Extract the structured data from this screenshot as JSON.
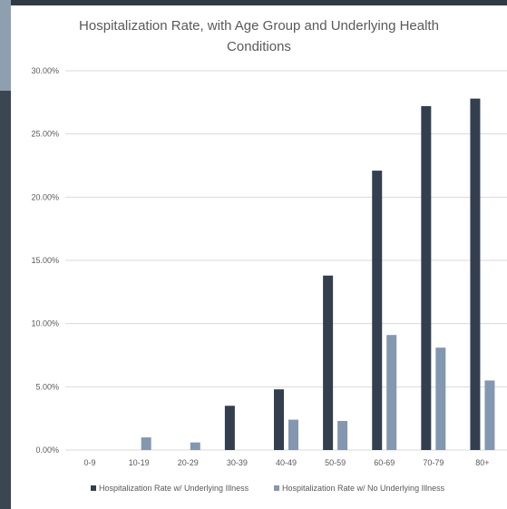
{
  "colors": {
    "series_underlying": "#333f4f",
    "series_no_underlying": "#8497b0",
    "gridline": "#d9d9d9",
    "text": "#595959"
  },
  "chart_data": {
    "type": "bar",
    "title_lines": [
      "Hospitalization Rate, with Age Group and Underlying Health",
      "Conditions"
    ],
    "categories": [
      "0-9",
      "10-19",
      "20-29",
      "30-39",
      "40-49",
      "50-59",
      "60-69",
      "70-79",
      "80+"
    ],
    "series": [
      {
        "name": "Hospitalization Rate w/ Underlying Illness",
        "values": [
          0,
          0,
          0,
          3.5,
          4.8,
          13.8,
          22.1,
          27.2,
          27.8
        ]
      },
      {
        "name": "Hospitalization Rate w/ No Underlying Illness",
        "values": [
          0,
          1.0,
          0.6,
          0,
          2.4,
          2.3,
          9.1,
          8.1,
          5.5
        ]
      }
    ],
    "ylim": [
      0,
      30
    ],
    "yticks": [
      0,
      5,
      10,
      15,
      20,
      25,
      30
    ],
    "ytick_labels": [
      "0.00%",
      "5.00%",
      "10.00%",
      "15.00%",
      "20.00%",
      "25.00%",
      "30.00%"
    ],
    "grid": true,
    "legend_position": "bottom"
  }
}
